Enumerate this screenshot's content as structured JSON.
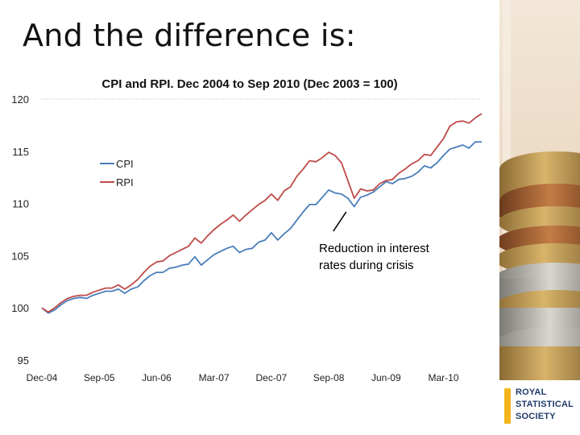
{
  "slide": {
    "title": "And the difference is:"
  },
  "logo": {
    "lines": [
      "ROYAL",
      "STATISTICAL",
      "SOCIETY"
    ],
    "bar_color": "#f2b51c",
    "text_color": "#223a6a"
  },
  "chart_data": {
    "type": "line",
    "title": "CPI and RPI. Dec 2004 to Sep 2010 (Dec 2003 = 100)",
    "xlabel": "",
    "ylabel": "",
    "ylim": [
      95,
      120
    ],
    "yticks": [
      95,
      100,
      105,
      110,
      115,
      120
    ],
    "xtick_labels": [
      "Dec-04",
      "Sep-05",
      "Jun-06",
      "Mar-07",
      "Dec-07",
      "Sep-08",
      "Jun-09",
      "Mar-10"
    ],
    "xtick_every": 9,
    "grid": "top-line-only",
    "legend": "upper-left",
    "series": [
      {
        "name": "CPI",
        "color": "#4a7ebb",
        "values": [
          100.0,
          99.5,
          99.8,
          100.3,
          100.7,
          100.9,
          101.0,
          100.9,
          101.2,
          101.4,
          101.6,
          101.6,
          101.8,
          101.4,
          101.8,
          102.0,
          102.6,
          103.1,
          103.4,
          103.4,
          103.8,
          103.9,
          104.1,
          104.2,
          104.9,
          104.1,
          104.6,
          105.1,
          105.4,
          105.7,
          105.9,
          105.3,
          105.6,
          105.7,
          106.3,
          106.5,
          107.2,
          106.5,
          107.1,
          107.6,
          108.4,
          109.2,
          109.9,
          109.9,
          110.6,
          111.3,
          111.0,
          110.9,
          110.5,
          109.7,
          110.6,
          110.8,
          111.1,
          111.6,
          112.1,
          111.9,
          112.3,
          112.4,
          112.6,
          113.0,
          113.6,
          113.4,
          113.9,
          114.6,
          115.2,
          115.4,
          115.6,
          115.3,
          115.9,
          115.9
        ],
        "line_style": "solid"
      },
      {
        "name": "RPI",
        "color": "#be4b48",
        "values": [
          100.0,
          99.6,
          100.0,
          100.5,
          100.9,
          101.1,
          101.2,
          101.2,
          101.5,
          101.7,
          101.9,
          101.9,
          102.2,
          101.8,
          102.2,
          102.7,
          103.4,
          104.0,
          104.4,
          104.5,
          105.0,
          105.3,
          105.6,
          105.9,
          106.7,
          106.2,
          106.9,
          107.5,
          108.0,
          108.4,
          108.9,
          108.3,
          108.9,
          109.4,
          109.9,
          110.3,
          110.9,
          110.3,
          111.2,
          111.6,
          112.6,
          113.3,
          114.1,
          114.0,
          114.4,
          114.9,
          114.6,
          113.9,
          112.2,
          110.5,
          111.4,
          111.2,
          111.3,
          111.9,
          112.2,
          112.3,
          112.9,
          113.3,
          113.8,
          114.1,
          114.7,
          114.6,
          115.4,
          116.2,
          117.4,
          117.8,
          117.9,
          117.7,
          118.2,
          118.6
        ],
        "line_style": "solid"
      }
    ],
    "annotations": [
      {
        "text_lines": [
          "Reduction in interest",
          "rates during crisis"
        ],
        "points_to_index": 49,
        "points_to_value": 109.5
      }
    ]
  }
}
